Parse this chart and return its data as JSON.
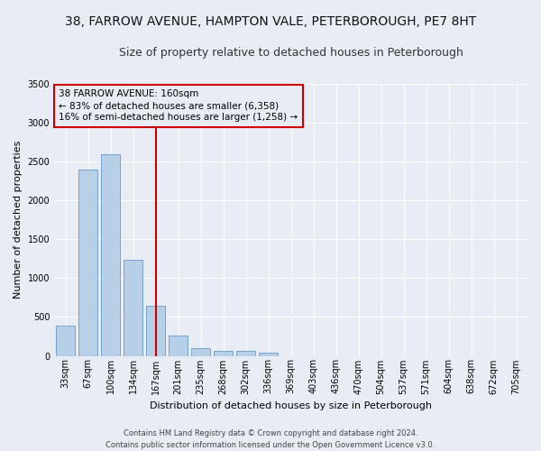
{
  "title_line1": "38, FARROW AVENUE, HAMPTON VALE, PETERBOROUGH, PE7 8HT",
  "title_line2": "Size of property relative to detached houses in Peterborough",
  "xlabel": "Distribution of detached houses by size in Peterborough",
  "ylabel": "Number of detached properties",
  "footer_line1": "Contains HM Land Registry data © Crown copyright and database right 2024.",
  "footer_line2": "Contains public sector information licensed under the Open Government Licence v3.0.",
  "annotation_line1": "38 FARROW AVENUE: 160sqm",
  "annotation_line2": "← 83% of detached houses are smaller (6,358)",
  "annotation_line3": "16% of semi-detached houses are larger (1,258) →",
  "bar_color": "#b8cfe8",
  "bar_edge_color": "#6699cc",
  "background_color": "#e8ecf5",
  "grid_color": "#ffffff",
  "annotation_box_color": "#cc0000",
  "vline_color": "#cc0000",
  "categories": [
    "33sqm",
    "67sqm",
    "100sqm",
    "134sqm",
    "167sqm",
    "201sqm",
    "235sqm",
    "268sqm",
    "302sqm",
    "336sqm",
    "369sqm",
    "403sqm",
    "436sqm",
    "470sqm",
    "504sqm",
    "537sqm",
    "571sqm",
    "604sqm",
    "638sqm",
    "672sqm",
    "705sqm"
  ],
  "values": [
    390,
    2400,
    2600,
    1240,
    640,
    260,
    100,
    60,
    60,
    40,
    0,
    0,
    0,
    0,
    0,
    0,
    0,
    0,
    0,
    0,
    0
  ],
  "ylim": [
    0,
    3500
  ],
  "vline_x_index": 4,
  "figsize": [
    6.0,
    5.0
  ],
  "dpi": 100,
  "title1_fontsize": 10,
  "title2_fontsize": 9,
  "ylabel_fontsize": 8,
  "xlabel_fontsize": 8,
  "tick_fontsize": 7,
  "footer_fontsize": 6,
  "annotation_fontsize": 7.5
}
